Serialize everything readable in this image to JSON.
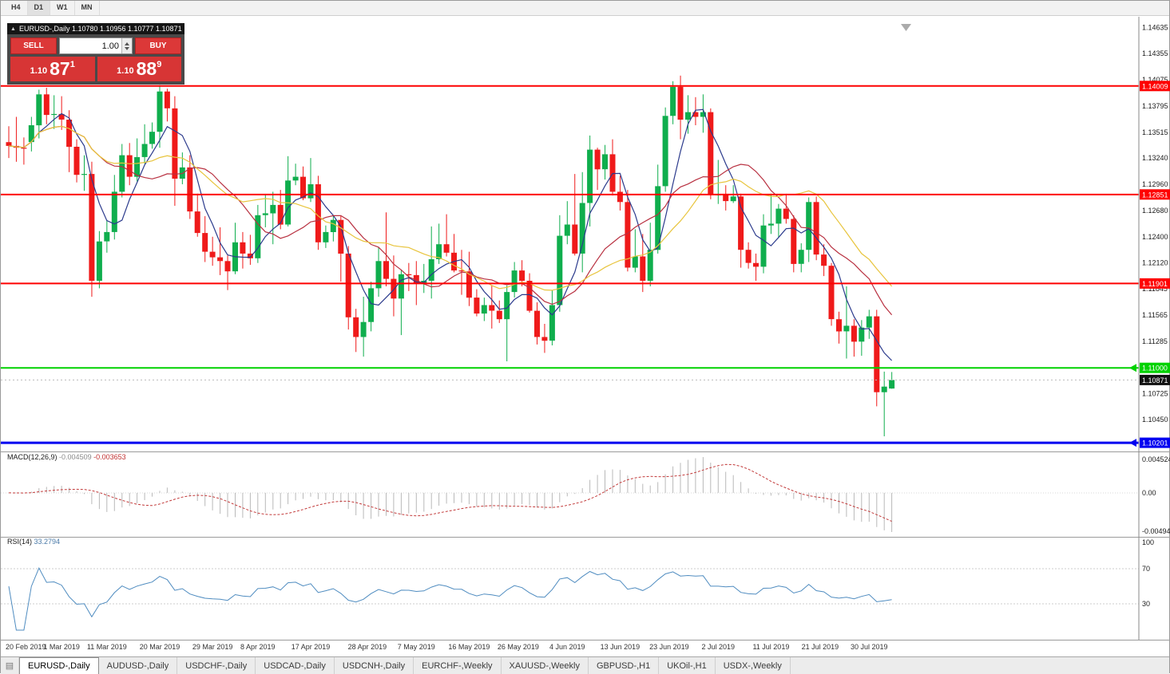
{
  "toolbar": {
    "timeframes": [
      "H4",
      "D1",
      "W1",
      "MN"
    ],
    "active": "D1"
  },
  "symbol_header": {
    "text": "EURUSD-,Daily  1.10780 1.10956 1.10777 1.10871"
  },
  "trade_panel": {
    "sell_label": "SELL",
    "buy_label": "BUY",
    "volume": "1.00",
    "sell_price": {
      "small": "1.10",
      "big": "87",
      "sup": "1"
    },
    "buy_price": {
      "small": "1.10",
      "big": "88",
      "sup": "9"
    },
    "button_color": "#dc3838",
    "price_box_color": "#d73535"
  },
  "indicators": {
    "macd": {
      "title": "MACD(12,26,9)",
      "value_main": "-0.004509",
      "value_signal": "-0.003653",
      "axis_labels": [
        "0.004524",
        "0.00",
        "-0.00494"
      ],
      "histogram_color": "#b9b9b9",
      "signal_color": "#c23a3a"
    },
    "rsi": {
      "title": "RSI(14)",
      "value": "33.2794",
      "axis_labels": [
        "100",
        "70",
        "30"
      ],
      "levels": [
        70,
        30
      ],
      "line_color": "#4f8cc0"
    }
  },
  "bottom_tabs": {
    "active": "EURUSD-,Daily",
    "items": [
      "EURUSD-,Daily",
      "AUDUSD-,Daily",
      "USDCHF-,Daily",
      "USDCAD-,Daily",
      "USDCNH-,Daily",
      "EURCHF-,Weekly",
      "XAUUSD-,Weekly",
      "GBPUSD-,H1",
      "UKOil-,H1",
      "USDX-,Weekly"
    ],
    "list_icon": "chart-list-icon"
  },
  "chart_data": {
    "type": "candlestick",
    "symbol": "EURUSD-",
    "timeframe": "Daily",
    "ohlc_display": {
      "open": "1.10780",
      "high": "1.10956",
      "low": "1.10777",
      "close": "1.10871"
    },
    "colors": {
      "bull": "#0fae4d",
      "bear": "#ef1a1a"
    },
    "y_range": {
      "top": 1.1468,
      "bottom": 1.10125
    },
    "y_axis_ticks": [
      1.14635,
      1.14355,
      1.14075,
      1.13795,
      1.13515,
      1.1324,
      1.1296,
      1.1268,
      1.124,
      1.1212,
      1.11845,
      1.11565,
      1.11285,
      1.10725,
      1.1045
    ],
    "hlines": [
      {
        "price": 1.14009,
        "label": "1.14009",
        "color": "#fe0000",
        "width": 2,
        "arrow": false
      },
      {
        "price": 1.12851,
        "label": "1.12851",
        "color": "#fe0000",
        "width": 2,
        "arrow": false
      },
      {
        "price": 1.11901,
        "label": "1.11901",
        "color": "#fe0000",
        "width": 2,
        "arrow": false
      },
      {
        "price": 1.11,
        "label": "1.11000",
        "color": "#00d200",
        "width": 2,
        "arrow": true
      },
      {
        "price": 1.10201,
        "label": "1.10201",
        "color": "#0000f0",
        "width": 3,
        "arrow": true
      }
    ],
    "current_price": {
      "value": 1.10871,
      "label": "1.10871"
    },
    "moving_averages": [
      {
        "period": 5,
        "color": "#2b3a8c"
      },
      {
        "period": 13,
        "color": "#b83040"
      },
      {
        "period": 21,
        "color": "#e8c43c"
      }
    ],
    "x_labels": [
      [
        "20 Feb 2019",
        0
      ],
      [
        "1 Mar 2019",
        7
      ],
      [
        "11 Mar 2019",
        13
      ],
      [
        "20 Mar 2019",
        20
      ],
      [
        "29 Mar 2019",
        27
      ],
      [
        "8 Apr 2019",
        33
      ],
      [
        "17 Apr 2019",
        40
      ],
      [
        "28 Apr 2019",
        47.5
      ],
      [
        "7 May 2019",
        54
      ],
      [
        "16 May 2019",
        61
      ],
      [
        "26 May 2019",
        67.5
      ],
      [
        "4 Jun 2019",
        74
      ],
      [
        "13 Jun 2019",
        81
      ],
      [
        "23 Jun 2019",
        87.5
      ],
      [
        "2 Jul 2019",
        94
      ],
      [
        "11 Jul 2019",
        101
      ],
      [
        "21 Jul 2019",
        107.5
      ],
      [
        "30 Jul 2019",
        114
      ]
    ],
    "candles": [
      [
        1.1341,
        1.1358,
        1.1324,
        1.1337
      ],
      [
        1.1337,
        1.1368,
        1.132,
        1.1335
      ],
      [
        1.1335,
        1.1346,
        1.1317,
        1.1334
      ],
      [
        1.1341,
        1.1368,
        1.1331,
        1.1359
      ],
      [
        1.1359,
        1.1397,
        1.1345,
        1.1392
      ],
      [
        1.1392,
        1.1399,
        1.136,
        1.137
      ],
      [
        1.137,
        1.1391,
        1.1355,
        1.1371
      ],
      [
        1.1371,
        1.139,
        1.1354,
        1.1365
      ],
      [
        1.1365,
        1.1375,
        1.1309,
        1.1336
      ],
      [
        1.1336,
        1.1344,
        1.1298,
        1.1306
      ],
      [
        1.1306,
        1.1327,
        1.1289,
        1.1307
      ],
      [
        1.1307,
        1.132,
        1.1176,
        1.1193
      ],
      [
        1.1193,
        1.1246,
        1.1185,
        1.1235
      ],
      [
        1.1235,
        1.1258,
        1.1223,
        1.1245
      ],
      [
        1.1245,
        1.1306,
        1.1237,
        1.1288
      ],
      [
        1.1288,
        1.1339,
        1.1282,
        1.1327
      ],
      [
        1.1327,
        1.134,
        1.1295,
        1.1304
      ],
      [
        1.1304,
        1.1345,
        1.1299,
        1.1325
      ],
      [
        1.1325,
        1.136,
        1.1318,
        1.1339
      ],
      [
        1.1339,
        1.1362,
        1.1334,
        1.1352
      ],
      [
        1.1352,
        1.1402,
        1.1335,
        1.1395
      ],
      [
        1.1395,
        1.1398,
        1.1363,
        1.1377
      ],
      [
        1.1377,
        1.139,
        1.1273,
        1.1302
      ],
      [
        1.1302,
        1.133,
        1.1296,
        1.1314
      ],
      [
        1.1314,
        1.1327,
        1.1259,
        1.1267
      ],
      [
        1.1267,
        1.1286,
        1.124,
        1.1244
      ],
      [
        1.1244,
        1.1262,
        1.1213,
        1.1224
      ],
      [
        1.1224,
        1.124,
        1.1209,
        1.1218
      ],
      [
        1.1218,
        1.125,
        1.1199,
        1.1214
      ],
      [
        1.1214,
        1.122,
        1.1183,
        1.1203
      ],
      [
        1.1203,
        1.1255,
        1.12,
        1.1234
      ],
      [
        1.1234,
        1.1245,
        1.1206,
        1.1222
      ],
      [
        1.1222,
        1.1242,
        1.121,
        1.1217
      ],
      [
        1.1217,
        1.1274,
        1.1212,
        1.1263
      ],
      [
        1.1263,
        1.1285,
        1.125,
        1.1265
      ],
      [
        1.1265,
        1.1288,
        1.1232,
        1.1274
      ],
      [
        1.1274,
        1.129,
        1.1248,
        1.1253
      ],
      [
        1.1253,
        1.1326,
        1.1251,
        1.13
      ],
      [
        1.13,
        1.1318,
        1.1295,
        1.1304
      ],
      [
        1.1304,
        1.1315,
        1.1279,
        1.1281
      ],
      [
        1.1281,
        1.1324,
        1.1277,
        1.1296
      ],
      [
        1.1296,
        1.1305,
        1.1226,
        1.1234
      ],
      [
        1.1234,
        1.1252,
        1.1228,
        1.1245
      ],
      [
        1.1245,
        1.1263,
        1.1235,
        1.1258
      ],
      [
        1.1258,
        1.1262,
        1.1192,
        1.1222
      ],
      [
        1.1222,
        1.123,
        1.1141,
        1.1154
      ],
      [
        1.1154,
        1.1163,
        1.1117,
        1.1133
      ],
      [
        1.1133,
        1.1176,
        1.1112,
        1.1149
      ],
      [
        1.1149,
        1.1192,
        1.1139,
        1.1185
      ],
      [
        1.1185,
        1.1229,
        1.1176,
        1.1214
      ],
      [
        1.1214,
        1.1266,
        1.1187,
        1.1195
      ],
      [
        1.1195,
        1.122,
        1.1155,
        1.1174
      ],
      [
        1.1174,
        1.1205,
        1.1135,
        1.12
      ],
      [
        1.12,
        1.1212,
        1.1182,
        1.1199
      ],
      [
        1.1199,
        1.1214,
        1.1167,
        1.119
      ],
      [
        1.119,
        1.1211,
        1.118,
        1.1193
      ],
      [
        1.1193,
        1.1251,
        1.1174,
        1.1216
      ],
      [
        1.1216,
        1.1254,
        1.1211,
        1.1232
      ],
      [
        1.1232,
        1.1264,
        1.1219,
        1.1223
      ],
      [
        1.1223,
        1.1243,
        1.1202,
        1.1204
      ],
      [
        1.1204,
        1.1226,
        1.1178,
        1.1203
      ],
      [
        1.1203,
        1.1224,
        1.1166,
        1.1175
      ],
      [
        1.1175,
        1.1184,
        1.1155,
        1.1158
      ],
      [
        1.1158,
        1.1175,
        1.115,
        1.1167
      ],
      [
        1.1167,
        1.1188,
        1.1142,
        1.1161
      ],
      [
        1.1161,
        1.1172,
        1.1148,
        1.1152
      ],
      [
        1.1152,
        1.1188,
        1.1107,
        1.1181
      ],
      [
        1.1181,
        1.1213,
        1.1175,
        1.1204
      ],
      [
        1.1204,
        1.1215,
        1.1187,
        1.1193
      ],
      [
        1.1193,
        1.1201,
        1.1159,
        1.1161
      ],
      [
        1.1161,
        1.117,
        1.1125,
        1.1133
      ],
      [
        1.1133,
        1.1147,
        1.1116,
        1.1129
      ],
      [
        1.1129,
        1.1183,
        1.1124,
        1.1167
      ],
      [
        1.1167,
        1.1263,
        1.116,
        1.1241
      ],
      [
        1.1241,
        1.1278,
        1.1232,
        1.1253
      ],
      [
        1.1253,
        1.1307,
        1.122,
        1.1222
      ],
      [
        1.1222,
        1.1309,
        1.1202,
        1.1276
      ],
      [
        1.1276,
        1.1348,
        1.1251,
        1.1333
      ],
      [
        1.1333,
        1.1335,
        1.129,
        1.1312
      ],
      [
        1.1312,
        1.1338,
        1.1301,
        1.1328
      ],
      [
        1.1328,
        1.1344,
        1.1284,
        1.1288
      ],
      [
        1.1288,
        1.1305,
        1.1268,
        1.1277
      ],
      [
        1.1277,
        1.129,
        1.1203,
        1.1207
      ],
      [
        1.1207,
        1.1248,
        1.1202,
        1.1219
      ],
      [
        1.1219,
        1.1243,
        1.1181,
        1.1193
      ],
      [
        1.1193,
        1.1255,
        1.1187,
        1.1226
      ],
      [
        1.1226,
        1.1317,
        1.1222,
        1.1294
      ],
      [
        1.1294,
        1.1378,
        1.1288,
        1.1369
      ],
      [
        1.1369,
        1.1406,
        1.136,
        1.14
      ],
      [
        1.14,
        1.1412,
        1.1344,
        1.1365
      ],
      [
        1.1365,
        1.1391,
        1.135,
        1.1373
      ],
      [
        1.1373,
        1.1389,
        1.1359,
        1.1368
      ],
      [
        1.1368,
        1.1392,
        1.1351,
        1.1373
      ],
      [
        1.1373,
        1.1377,
        1.128,
        1.1285
      ],
      [
        1.1285,
        1.1322,
        1.1275,
        1.1285
      ],
      [
        1.1285,
        1.1295,
        1.1268,
        1.1278
      ],
      [
        1.1278,
        1.1295,
        1.1276,
        1.1283
      ],
      [
        1.1283,
        1.1286,
        1.1207,
        1.1226
      ],
      [
        1.1226,
        1.1234,
        1.1206,
        1.1212
      ],
      [
        1.1212,
        1.1222,
        1.1193,
        1.1208
      ],
      [
        1.1208,
        1.1264,
        1.1201,
        1.1252
      ],
      [
        1.1252,
        1.1286,
        1.1243,
        1.1254
      ],
      [
        1.1254,
        1.1275,
        1.1239,
        1.127
      ],
      [
        1.127,
        1.1285,
        1.1254,
        1.1259
      ],
      [
        1.1259,
        1.1263,
        1.1202,
        1.1211
      ],
      [
        1.1211,
        1.1233,
        1.1202,
        1.1226
      ],
      [
        1.1226,
        1.1282,
        1.1213,
        1.1277
      ],
      [
        1.1277,
        1.1283,
        1.1215,
        1.1221
      ],
      [
        1.1221,
        1.1232,
        1.1198,
        1.1209
      ],
      [
        1.1209,
        1.1212,
        1.1145,
        1.1152
      ],
      [
        1.1152,
        1.116,
        1.1126,
        1.1139
      ],
      [
        1.1139,
        1.1187,
        1.111,
        1.1145
      ],
      [
        1.1145,
        1.1152,
        1.1112,
        1.1128
      ],
      [
        1.1128,
        1.1151,
        1.1113,
        1.1143
      ],
      [
        1.1143,
        1.1162,
        1.1131,
        1.1155
      ],
      [
        1.1155,
        1.1162,
        1.1059,
        1.1074
      ],
      [
        1.1074,
        1.1096,
        1.1027,
        1.108
      ],
      [
        1.1078,
        1.10956,
        1.10777,
        1.10871
      ]
    ]
  }
}
